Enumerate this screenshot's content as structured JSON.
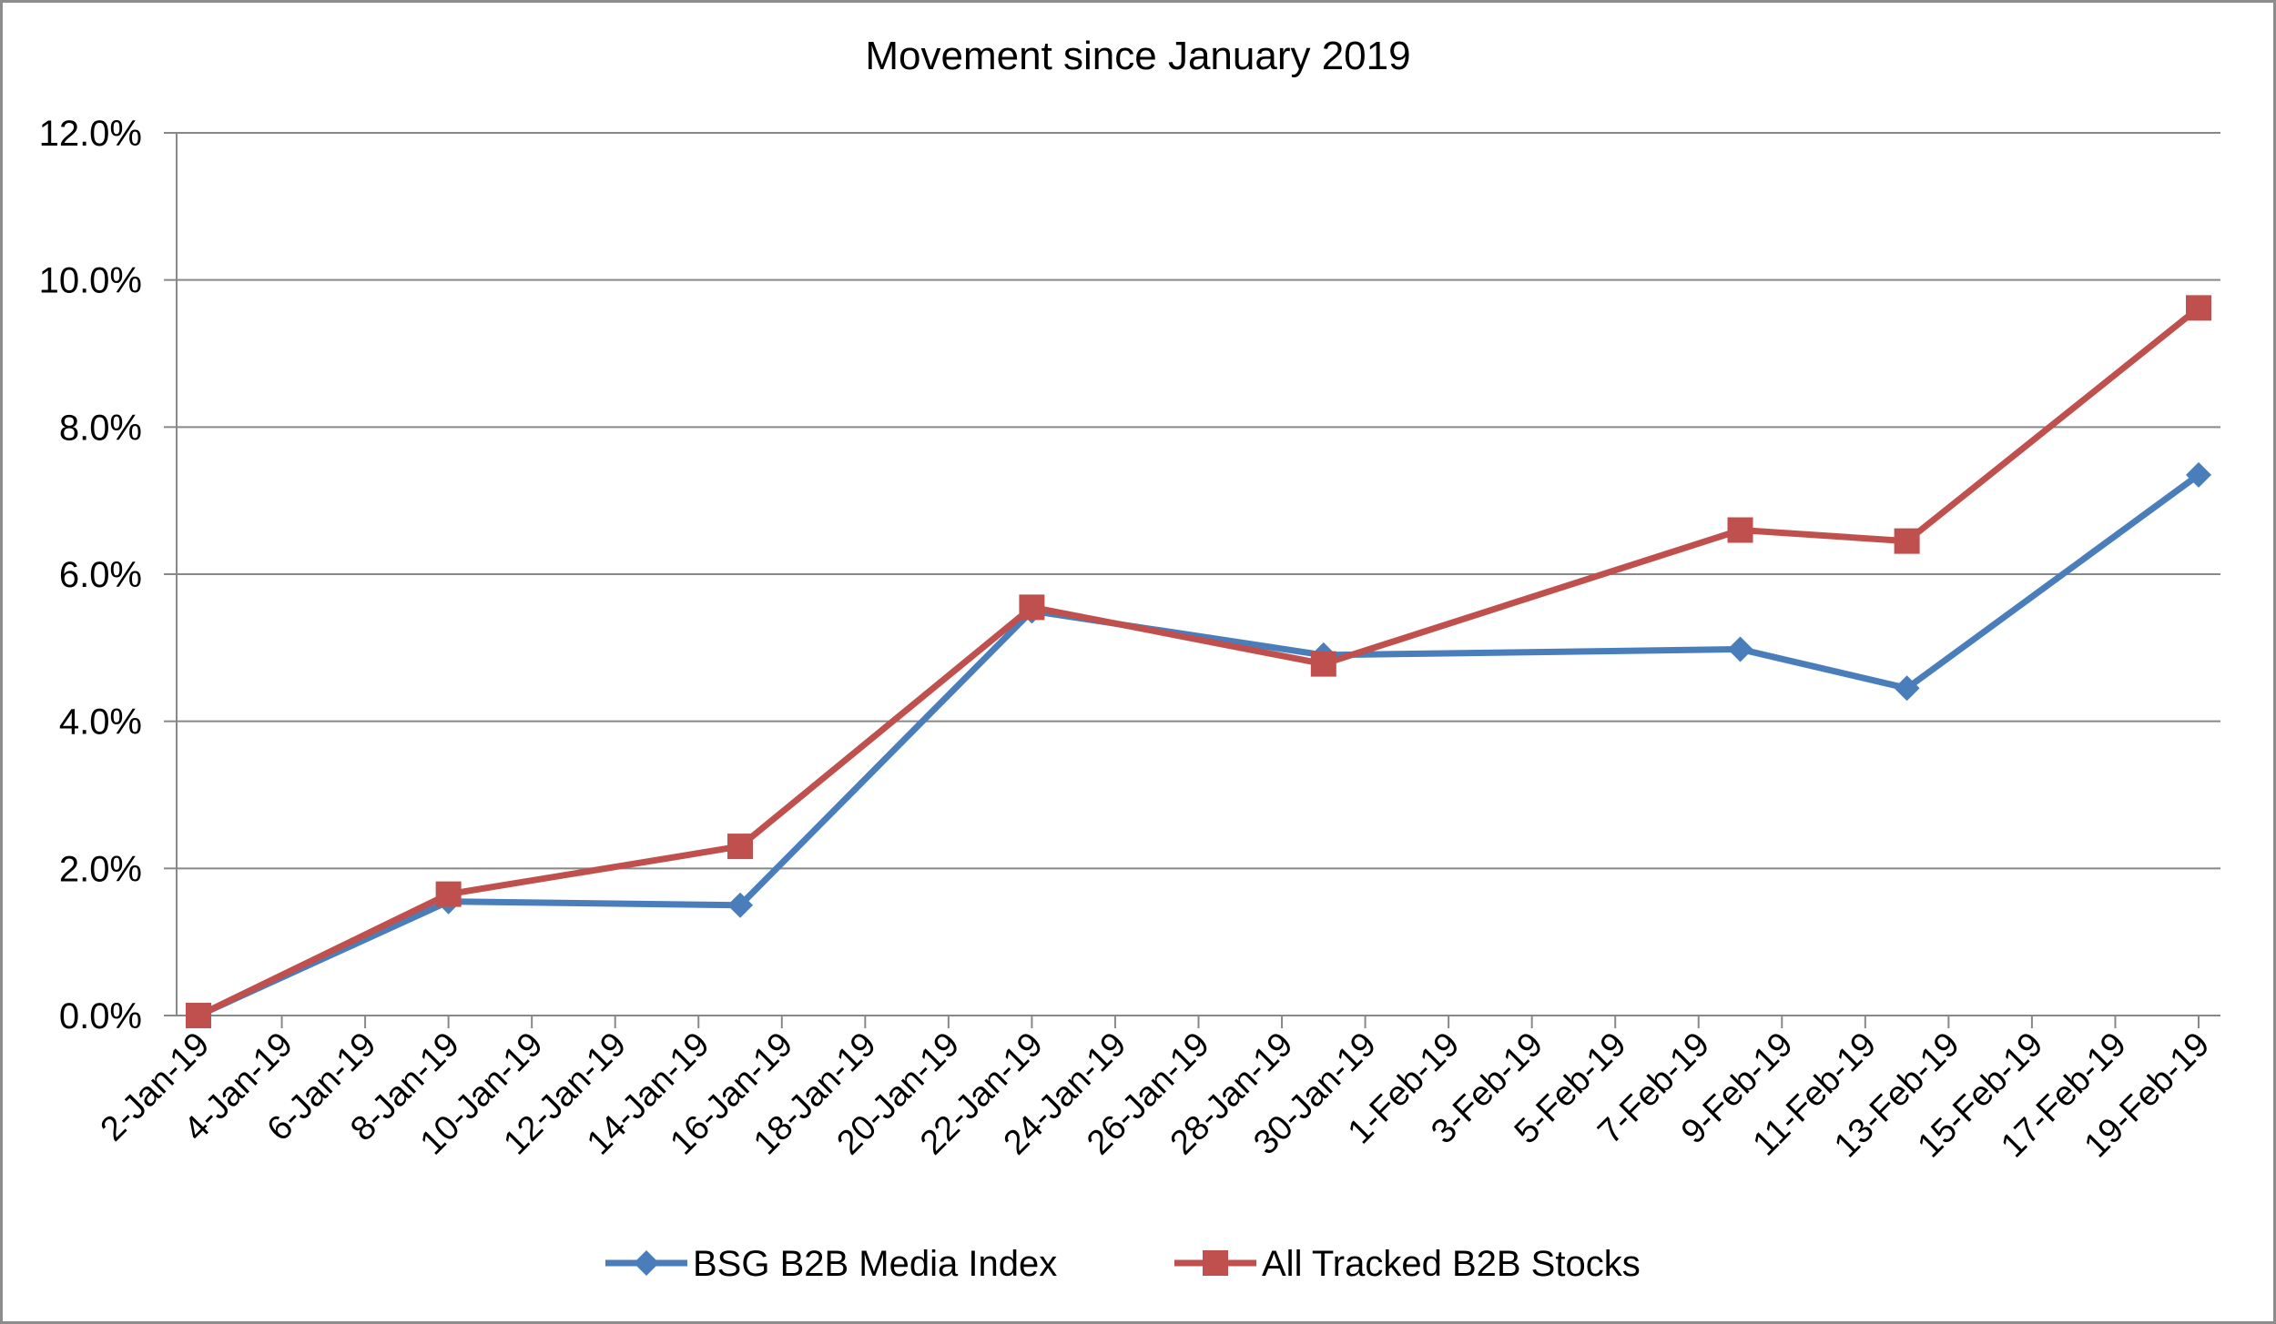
{
  "chart_data": {
    "type": "line",
    "title": "Movement since January 2019",
    "xlabel": "",
    "ylabel": "",
    "ylim": [
      0,
      12
    ],
    "ytick_labels": [
      "0.0%",
      "2.0%",
      "4.0%",
      "6.0%",
      "8.0%",
      "10.0%",
      "12.0%"
    ],
    "yticks": [
      0,
      2,
      4,
      6,
      8,
      10,
      12
    ],
    "categories": [
      "2-Jan-19",
      "4-Jan-19",
      "6-Jan-19",
      "8-Jan-19",
      "10-Jan-19",
      "12-Jan-19",
      "14-Jan-19",
      "16-Jan-19",
      "18-Jan-19",
      "20-Jan-19",
      "22-Jan-19",
      "24-Jan-19",
      "26-Jan-19",
      "28-Jan-19",
      "30-Jan-19",
      "1-Feb-19",
      "3-Feb-19",
      "5-Feb-19",
      "7-Feb-19",
      "9-Feb-19",
      "11-Feb-19",
      "13-Feb-19",
      "15-Feb-19",
      "17-Feb-19",
      "19-Feb-19"
    ],
    "grid": true,
    "legend_position": "bottom",
    "series": [
      {
        "name": "BSG B2B Media Index",
        "color": "#4a7ebb",
        "marker": "diamond",
        "x": [
          0,
          6,
          13,
          20,
          27,
          37,
          41,
          48
        ],
        "values": [
          0.0,
          1.55,
          1.5,
          5.5,
          4.9,
          4.98,
          4.45,
          7.35
        ]
      },
      {
        "name": "All Tracked B2B Stocks",
        "color": "#c0504d",
        "marker": "square",
        "x": [
          0,
          6,
          13,
          20,
          27,
          37,
          41,
          48
        ],
        "values": [
          0.0,
          1.65,
          2.3,
          5.55,
          4.78,
          6.6,
          6.45,
          9.62
        ]
      }
    ]
  },
  "colors": {
    "gridline": "#888888",
    "axis": "#888888",
    "frame": "#8c8c8c"
  }
}
